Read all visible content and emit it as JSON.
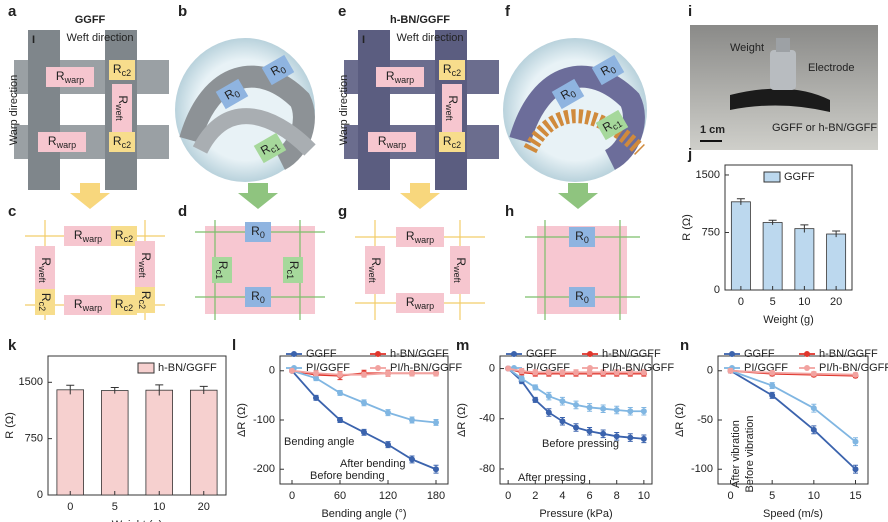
{
  "diagrams": {
    "a": {
      "panel": "a",
      "title": "GGFF",
      "weft": "Weft direction",
      "warp": "Warp direction",
      "current": "I",
      "resistors": [
        {
          "main": "R",
          "sub": "warp"
        },
        {
          "main": "R",
          "sub": "c2"
        },
        {
          "main": "R",
          "sub": "weft"
        },
        {
          "main": "R",
          "sub": "c2"
        },
        {
          "main": "R",
          "sub": "warp"
        }
      ]
    },
    "b": {
      "panel": "b",
      "resistors": [
        {
          "main": "R",
          "sub": "0"
        },
        {
          "main": "R",
          "sub": "0"
        },
        {
          "main": "R",
          "sub": "c1"
        }
      ]
    },
    "e": {
      "panel": "e",
      "title": "h-BN/GGFF",
      "weft": "Weft direction",
      "warp": "Warp direction",
      "current": "I",
      "resistors": [
        {
          "main": "R",
          "sub": "warp"
        },
        {
          "main": "R",
          "sub": "c2"
        },
        {
          "main": "R",
          "sub": "weft"
        },
        {
          "main": "R",
          "sub": "c2"
        },
        {
          "main": "R",
          "sub": "warp"
        }
      ]
    },
    "f": {
      "panel": "f",
      "resistors": [
        {
          "main": "R",
          "sub": "0"
        },
        {
          "main": "R",
          "sub": "0"
        },
        {
          "main": "R",
          "sub": "c1"
        }
      ]
    },
    "i": {
      "panel": "i",
      "weight": "Weight",
      "electrode": "Electrode",
      "scale": "1 cm",
      "sample": "GGFF or h-BN/GGFF"
    },
    "c": {
      "panel": "c",
      "resistors": [
        {
          "main": "R",
          "sub": "warp"
        },
        {
          "main": "R",
          "sub": "c2"
        },
        {
          "main": "R",
          "sub": "weft"
        },
        {
          "main": "R",
          "sub": "c2"
        },
        {
          "main": "R",
          "sub": "weft"
        },
        {
          "main": "R",
          "sub": "c2"
        },
        {
          "main": "R",
          "sub": "warp"
        },
        {
          "main": "R",
          "sub": "c2"
        }
      ]
    },
    "d": {
      "panel": "d",
      "resistors": [
        {
          "main": "R",
          "sub": "0"
        },
        {
          "main": "R",
          "sub": "c1"
        },
        {
          "main": "R",
          "sub": "c1"
        },
        {
          "main": "R",
          "sub": "0"
        }
      ]
    },
    "g": {
      "panel": "g",
      "resistors": [
        {
          "main": "R",
          "sub": "warp"
        },
        {
          "main": "R",
          "sub": "weft"
        },
        {
          "main": "R",
          "sub": "weft"
        },
        {
          "main": "R",
          "sub": "warp"
        }
      ]
    },
    "h": {
      "panel": "h",
      "resistors": [
        {
          "main": "R",
          "sub": "0"
        },
        {
          "main": "R",
          "sub": "0"
        }
      ]
    }
  },
  "chart_data": [
    {
      "type": "bar",
      "panel": "j",
      "categories": [
        "0",
        "5",
        "10",
        "20"
      ],
      "series": [
        {
          "name": "GGFF",
          "color": "#bcd8ee",
          "values": [
            1150,
            880,
            800,
            730
          ],
          "errors": [
            40,
            30,
            50,
            40
          ]
        }
      ],
      "ylim": [
        0,
        1630
      ],
      "yticks": [
        0,
        750,
        1500
      ],
      "xlabel": "Weight (g)",
      "ylabel": "R (Ω)"
    },
    {
      "type": "bar",
      "panel": "k",
      "categories": [
        "0",
        "5",
        "10",
        "20"
      ],
      "series": [
        {
          "name": "h-BN/GGFF",
          "color": "#f6d0cf",
          "values": [
            1400,
            1390,
            1395,
            1395
          ],
          "errors": [
            60,
            40,
            70,
            50
          ]
        }
      ],
      "ylim": [
        0,
        1850
      ],
      "yticks": [
        0,
        750,
        1500
      ],
      "xlabel": "Weight (g)",
      "ylabel": "R (Ω)"
    },
    {
      "type": "line",
      "panel": "l",
      "x": [
        0,
        30,
        60,
        90,
        120,
        150,
        180
      ],
      "series": [
        {
          "name": "GGFF",
          "color": "#3b63ad",
          "values": [
            0,
            -55,
            -100,
            -125,
            -150,
            -180,
            -200
          ],
          "errors": [
            3,
            5,
            5,
            6,
            6,
            7,
            8
          ]
        },
        {
          "name": "h-BN/GGFF",
          "color": "#e0362c",
          "values": [
            0,
            -8,
            -10,
            -5,
            -5,
            -5,
            -5
          ],
          "errors": [
            3,
            8,
            8,
            6,
            6,
            5,
            5
          ]
        },
        {
          "name": "PI/GGFF",
          "color": "#80b6e2",
          "values": [
            0,
            -15,
            -45,
            -65,
            -85,
            -100,
            -105
          ],
          "errors": [
            3,
            5,
            5,
            6,
            6,
            6,
            6
          ]
        },
        {
          "name": "PI/h-BN/GGFF",
          "color": "#f2a3a0",
          "values": [
            0,
            -5,
            -8,
            -8,
            -5,
            -5,
            -5
          ],
          "errors": [
            3,
            5,
            5,
            5,
            5,
            5,
            5
          ]
        }
      ],
      "xlim": [
        -15,
        195
      ],
      "xticks": [
        0,
        60,
        120,
        180
      ],
      "ylim": [
        -230,
        30
      ],
      "yticks": [
        -200,
        -100,
        0
      ],
      "xlabel": "Bending angle (°)",
      "ylabel": "ΔR (Ω)",
      "annotations": [
        "Bending angle",
        "After bending",
        "Before bending"
      ]
    },
    {
      "type": "line",
      "panel": "m",
      "x": [
        0,
        1,
        2,
        3,
        4,
        5,
        6,
        7,
        8,
        9,
        10
      ],
      "series": [
        {
          "name": "GGFF",
          "color": "#3b63ad",
          "values": [
            0,
            -10,
            -25,
            -35,
            -42,
            -47,
            -50,
            -52,
            -54,
            -55,
            -56
          ],
          "errors": [
            1,
            2,
            2,
            3,
            3,
            3,
            3,
            3,
            3,
            3,
            3
          ]
        },
        {
          "name": "h-BN/GGFF",
          "color": "#e0362c",
          "values": [
            0,
            -3,
            -4,
            -4,
            -4,
            -4,
            -4,
            -4,
            -4,
            -4,
            -4
          ],
          "errors": [
            1,
            2,
            2,
            2,
            2,
            2,
            2,
            2,
            2,
            2,
            2
          ]
        },
        {
          "name": "PI/GGFF",
          "color": "#80b6e2",
          "values": [
            0,
            -8,
            -15,
            -22,
            -26,
            -29,
            -31,
            -32,
            -33,
            -34,
            -34
          ],
          "errors": [
            1,
            2,
            2,
            3,
            3,
            3,
            3,
            3,
            3,
            3,
            3
          ]
        },
        {
          "name": "PI/h-BN/GGFF",
          "color": "#f2a3a0",
          "values": [
            0,
            -2,
            -3,
            -3,
            -3,
            -3,
            -3,
            -3,
            -3,
            -3,
            -3
          ],
          "errors": [
            1,
            2,
            2,
            2,
            2,
            2,
            2,
            2,
            2,
            2,
            2
          ]
        }
      ],
      "xlim": [
        -0.6,
        10.6
      ],
      "xticks": [
        0,
        2,
        4,
        6,
        8,
        10
      ],
      "ylim": [
        -92,
        10
      ],
      "yticks": [
        -80,
        -40,
        0
      ],
      "xlabel": "Pressure (kPa)",
      "ylabel": "ΔR (Ω)",
      "annotations": [
        "Before pressing",
        "After pressing"
      ]
    },
    {
      "type": "line",
      "panel": "n",
      "x": [
        0,
        5,
        10,
        15
      ],
      "series": [
        {
          "name": "GGFF",
          "color": "#3b63ad",
          "values": [
            0,
            -25,
            -60,
            -100
          ],
          "errors": [
            2,
            3,
            4,
            4
          ]
        },
        {
          "name": "h-BN/GGFF",
          "color": "#e0362c",
          "values": [
            0,
            -3,
            -4,
            -5
          ],
          "errors": [
            2,
            2,
            2,
            2
          ]
        },
        {
          "name": "PI/GGFF",
          "color": "#80b6e2",
          "values": [
            0,
            -15,
            -38,
            -72
          ],
          "errors": [
            2,
            3,
            4,
            4
          ]
        },
        {
          "name": "PI/h-BN/GGFF",
          "color": "#f2a3a0",
          "values": [
            0,
            -2,
            -3,
            -4
          ],
          "errors": [
            2,
            2,
            2,
            2
          ]
        }
      ],
      "xlim": [
        -1.5,
        16.5
      ],
      "xticks": [
        0,
        5,
        10,
        15
      ],
      "ylim": [
        -115,
        15
      ],
      "yticks": [
        -100,
        -50,
        0
      ],
      "xlabel": "Speed (m/s)",
      "ylabel": "ΔR (Ω)",
      "annotations": [
        "After vibration",
        "Before vibration"
      ]
    }
  ]
}
